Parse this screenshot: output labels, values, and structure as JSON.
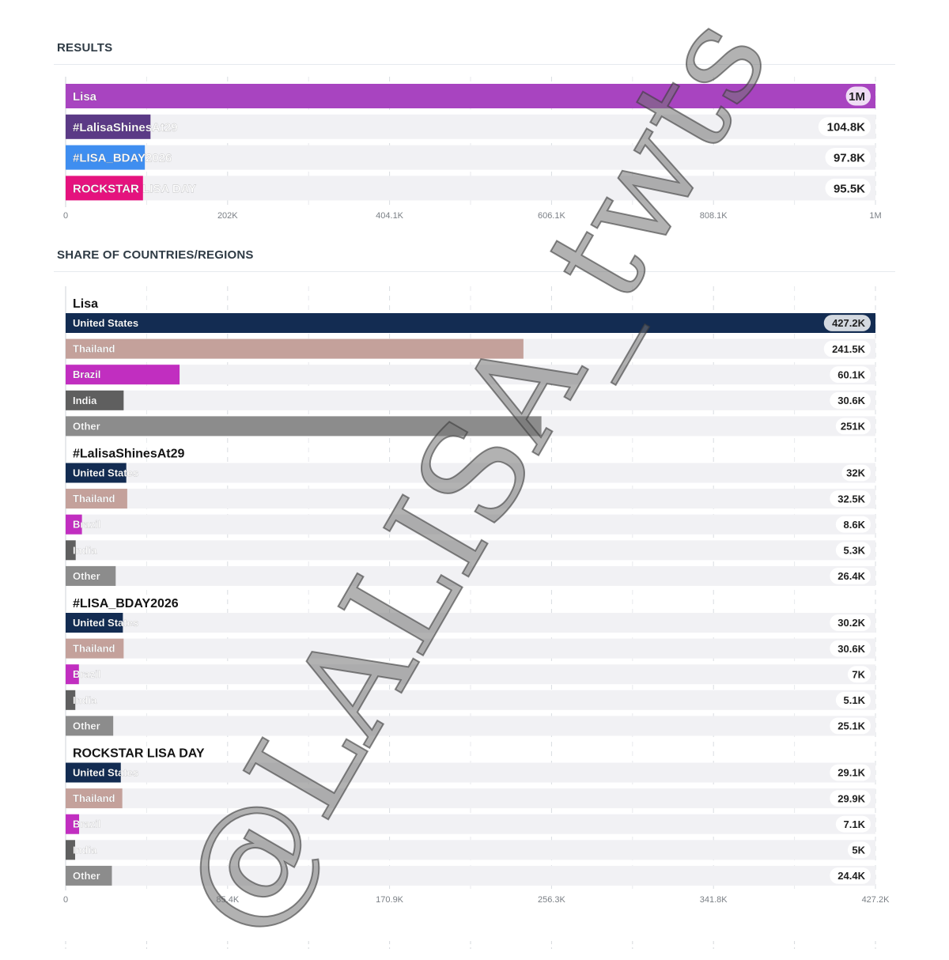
{
  "results": {
    "title": "RESULTS"
  },
  "share": {
    "title": "SHARE OF COUNTRIES/REGIONS"
  },
  "watermark_text": "@LALISA_twts",
  "colors": {
    "Lisa": "#a844c0",
    "#LalisaShinesAt29": "#5b3a86",
    "#LISA_BDAY2026": "#3f8ef0",
    "ROCKSTAR LISA DAY": "#e5127e",
    "United States": "#132c52",
    "Thailand": "#c4a19b",
    "Brazil": "#c12ec0",
    "India": "#5f5f5f",
    "Other": "#8c8c8c",
    "track": "#f1f1f4"
  },
  "chart_data": [
    {
      "type": "bar",
      "orientation": "horizontal",
      "categories": [
        "Lisa",
        "#LalisaShinesAt29",
        "#LISA_BDAY2026",
        "ROCKSTAR LISA DAY"
      ],
      "values": [
        1000000,
        104800,
        97800,
        95500
      ],
      "value_labels": [
        "1M",
        "104.8K",
        "97.8K",
        "95.5K"
      ],
      "xlim": [
        0,
        1000000
      ],
      "x_ticks": [
        "0",
        "202K",
        "404.1K",
        "606.1K",
        "808.1K",
        "1M"
      ],
      "grid": true
    },
    {
      "type": "bar",
      "orientation": "horizontal",
      "groups": [
        {
          "name": "Lisa",
          "categories": [
            "United States",
            "Thailand",
            "Brazil",
            "India",
            "Other"
          ],
          "values": [
            427200,
            241500,
            60100,
            30600,
            251000
          ],
          "value_labels": [
            "427.2K",
            "241.5K",
            "60.1K",
            "30.6K",
            "251K"
          ]
        },
        {
          "name": "#LalisaShinesAt29",
          "categories": [
            "United States",
            "Thailand",
            "Brazil",
            "India",
            "Other"
          ],
          "values": [
            32000,
            32500,
            8600,
            5300,
            26400
          ],
          "value_labels": [
            "32K",
            "32.5K",
            "8.6K",
            "5.3K",
            "26.4K"
          ]
        },
        {
          "name": "#LISA_BDAY2026",
          "categories": [
            "United States",
            "Thailand",
            "Brazil",
            "India",
            "Other"
          ],
          "values": [
            30200,
            30600,
            7000,
            5100,
            25100
          ],
          "value_labels": [
            "30.2K",
            "30.6K",
            "7K",
            "5.1K",
            "25.1K"
          ]
        },
        {
          "name": "ROCKSTAR LISA DAY",
          "categories": [
            "United States",
            "Thailand",
            "Brazil",
            "India",
            "Other"
          ],
          "values": [
            29100,
            29900,
            7100,
            5000,
            24400
          ],
          "value_labels": [
            "29.1K",
            "29.9K",
            "7.1K",
            "5K",
            "24.4K"
          ]
        }
      ],
      "xlim": [
        0,
        427200
      ],
      "x_ticks": [
        "0",
        "85.4K",
        "170.9K",
        "256.3K",
        "341.8K",
        "427.2K"
      ],
      "grid": true
    }
  ]
}
